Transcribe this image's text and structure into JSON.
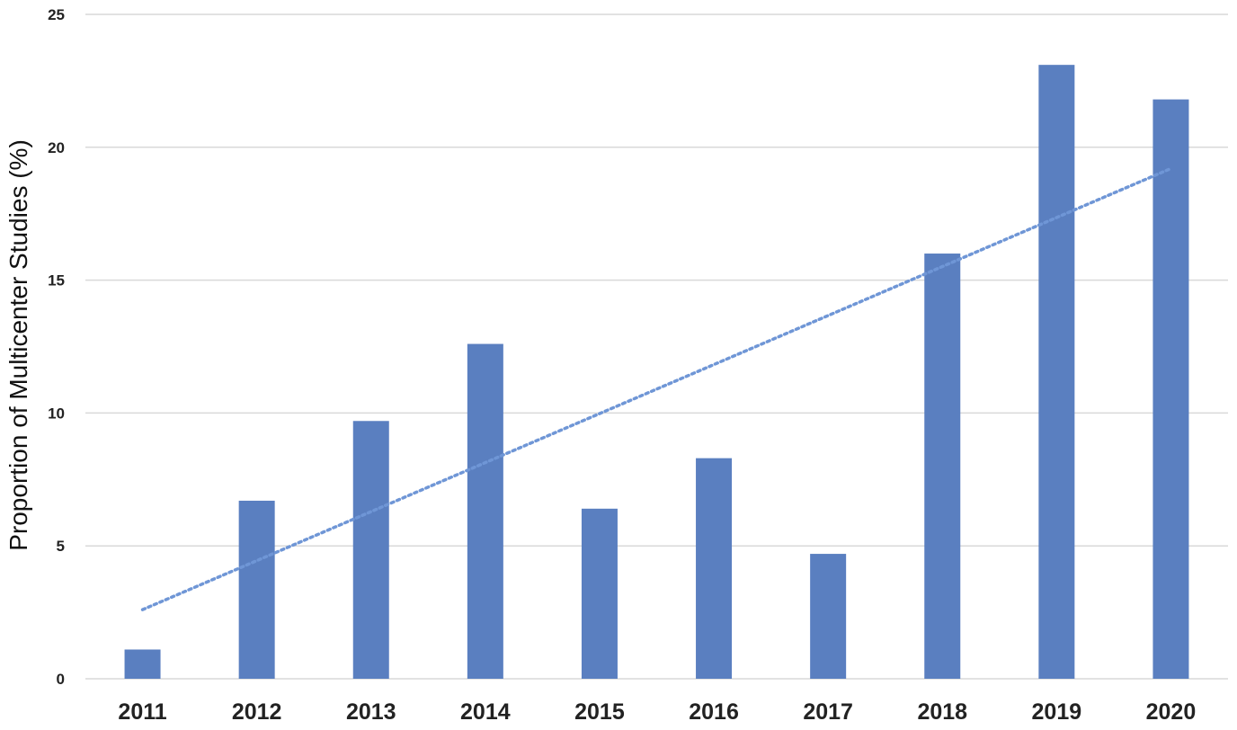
{
  "chart_data": {
    "type": "bar",
    "title": "",
    "xlabel": "",
    "ylabel": "Proportion of Multicenter Studies (%)",
    "ylim": [
      0,
      25
    ],
    "yticks": [
      "0",
      "5",
      "10",
      "15",
      "20",
      "25"
    ],
    "categories": [
      "2011",
      "2012",
      "2013",
      "2014",
      "2015",
      "2016",
      "2017",
      "2018",
      "2019",
      "2020"
    ],
    "values": [
      1.1,
      6.7,
      9.7,
      12.6,
      6.4,
      8.3,
      4.7,
      16.0,
      23.1,
      21.8
    ],
    "grid": true,
    "legend": "none",
    "trendline": {
      "type": "linear",
      "style": "dotted",
      "start": 2.6,
      "end": 19.2
    },
    "colors": {
      "bar": "#5a7fc0",
      "trendline": "#6f96d6",
      "grid": "#d9d9d9"
    }
  }
}
